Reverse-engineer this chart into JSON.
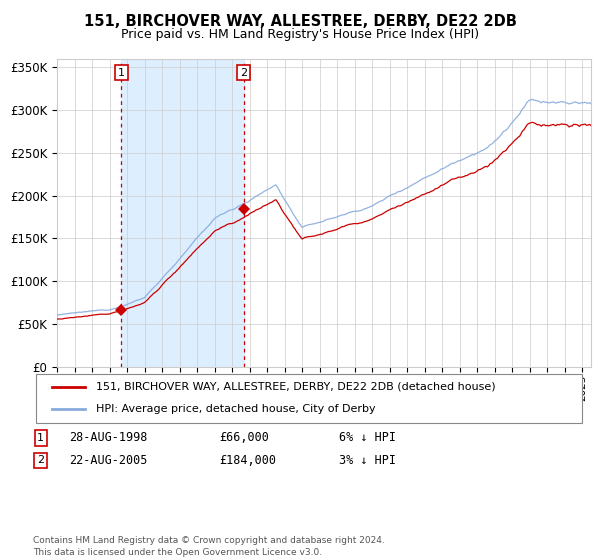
{
  "title1": "151, BIRCHOVER WAY, ALLESTREE, DERBY, DE22 2DB",
  "title2": "Price paid vs. HM Land Registry's House Price Index (HPI)",
  "sale1_date": "28-AUG-1998",
  "sale1_price": 66000,
  "sale1_label": "1",
  "sale1_year": 1998.67,
  "sale2_date": "22-AUG-2005",
  "sale2_price": 184000,
  "sale2_label": "2",
  "sale2_year": 2005.67,
  "legend_red": "151, BIRCHOVER WAY, ALLESTREE, DERBY, DE22 2DB (detached house)",
  "legend_blue": "HPI: Average price, detached house, City of Derby",
  "footer": "Contains HM Land Registry data © Crown copyright and database right 2024.\nThis data is licensed under the Open Government Licence v3.0.",
  "red_color": "#cc0000",
  "blue_color": "#88aadd",
  "bg_color": "#ffffff",
  "plot_bg": "#ffffff",
  "shade_color": "#ddeeff",
  "grid_color": "#cccccc",
  "ylim_max": 360000,
  "xlim_start": 1995.0,
  "xlim_end": 2025.5,
  "seed": 12345
}
